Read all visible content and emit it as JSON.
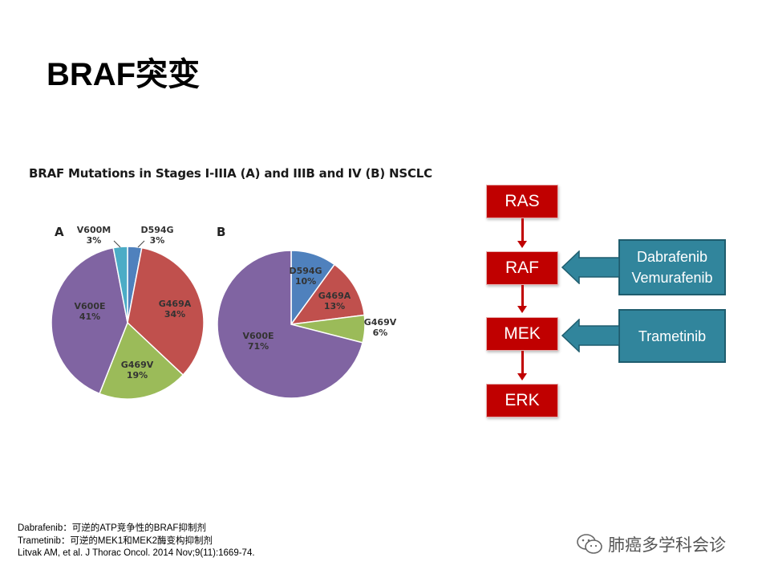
{
  "title": "BRAF突变",
  "chart_title": "BRAF Mutations in Stages I-IIIA (A) and IIIB and IV (B) NSCLC",
  "chart_data": [
    {
      "type": "pie",
      "panel_label": "A",
      "slices": [
        {
          "label": "D594G",
          "value": 3,
          "color": "#4f81bd"
        },
        {
          "label": "G469A",
          "value": 34,
          "color": "#c0504d"
        },
        {
          "label": "G469V",
          "value": 19,
          "color": "#9bbb59"
        },
        {
          "label": "V600E",
          "value": 41,
          "color": "#8064a2"
        },
        {
          "label": "V600M",
          "value": 3,
          "color": "#4bacc6"
        }
      ],
      "value_suffix": "%"
    },
    {
      "type": "pie",
      "panel_label": "B",
      "slices": [
        {
          "label": "D594G",
          "value": 10,
          "color": "#4f81bd"
        },
        {
          "label": "G469A",
          "value": 13,
          "color": "#c0504d"
        },
        {
          "label": "G469V",
          "value": 6,
          "color": "#9bbb59"
        },
        {
          "label": "V600E",
          "value": 71,
          "color": "#8064a2"
        }
      ],
      "value_suffix": "%"
    }
  ],
  "pathway": {
    "nodes": [
      "RAS",
      "RAF",
      "MEK",
      "ERK"
    ],
    "drugs": {
      "raf": [
        "Dabrafenib",
        "Vemurafenib"
      ],
      "mek": [
        "Trametinib"
      ]
    }
  },
  "footnotes": [
    "Dabrafenib：可逆的ATP竞争性的BRAF抑制剂",
    "Trametinib：可逆的MEK1和MEK2酶变构抑制剂",
    "Litvak AM, et al. J Thorac  Oncol. 2014 Nov;9(11):1669-74."
  ],
  "watermark": {
    "text": "肺癌多学科会诊",
    "icon": "wechat-icon"
  }
}
